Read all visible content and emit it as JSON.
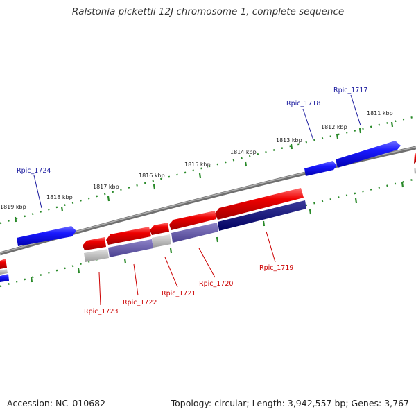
{
  "title": "Ralstonia pickettii 12J chromosome 1, complete sequence",
  "footer": {
    "accession": "Accession: NC_010682",
    "summary": "Topology: circular; Length: 3,942,557 bp; Genes: 3,767"
  },
  "colors": {
    "forward_gene": "#1a1aff",
    "reverse_gene": "#ee0000",
    "backbone": "#808080",
    "ticks": "#2a8a2a",
    "forward_label": "#1a1a9e",
    "reverse_label": "#cc0000",
    "kbp_label": "#222222"
  },
  "scale_labels": [
    "1811 kbp",
    "1812 kbp",
    "1813 kbp",
    "1814 kbp",
    "1815 kbp",
    "1816 kbp",
    "1817 kbp",
    "1818 kbp",
    "1819 kbp"
  ],
  "forward_genes": [
    "Rpic_1717",
    "Rpic_1718",
    "Rpic_1724"
  ],
  "reverse_genes": [
    "Rpic_1719",
    "Rpic_1720",
    "Rpic_1721",
    "Rpic_1722",
    "Rpic_1723"
  ]
}
